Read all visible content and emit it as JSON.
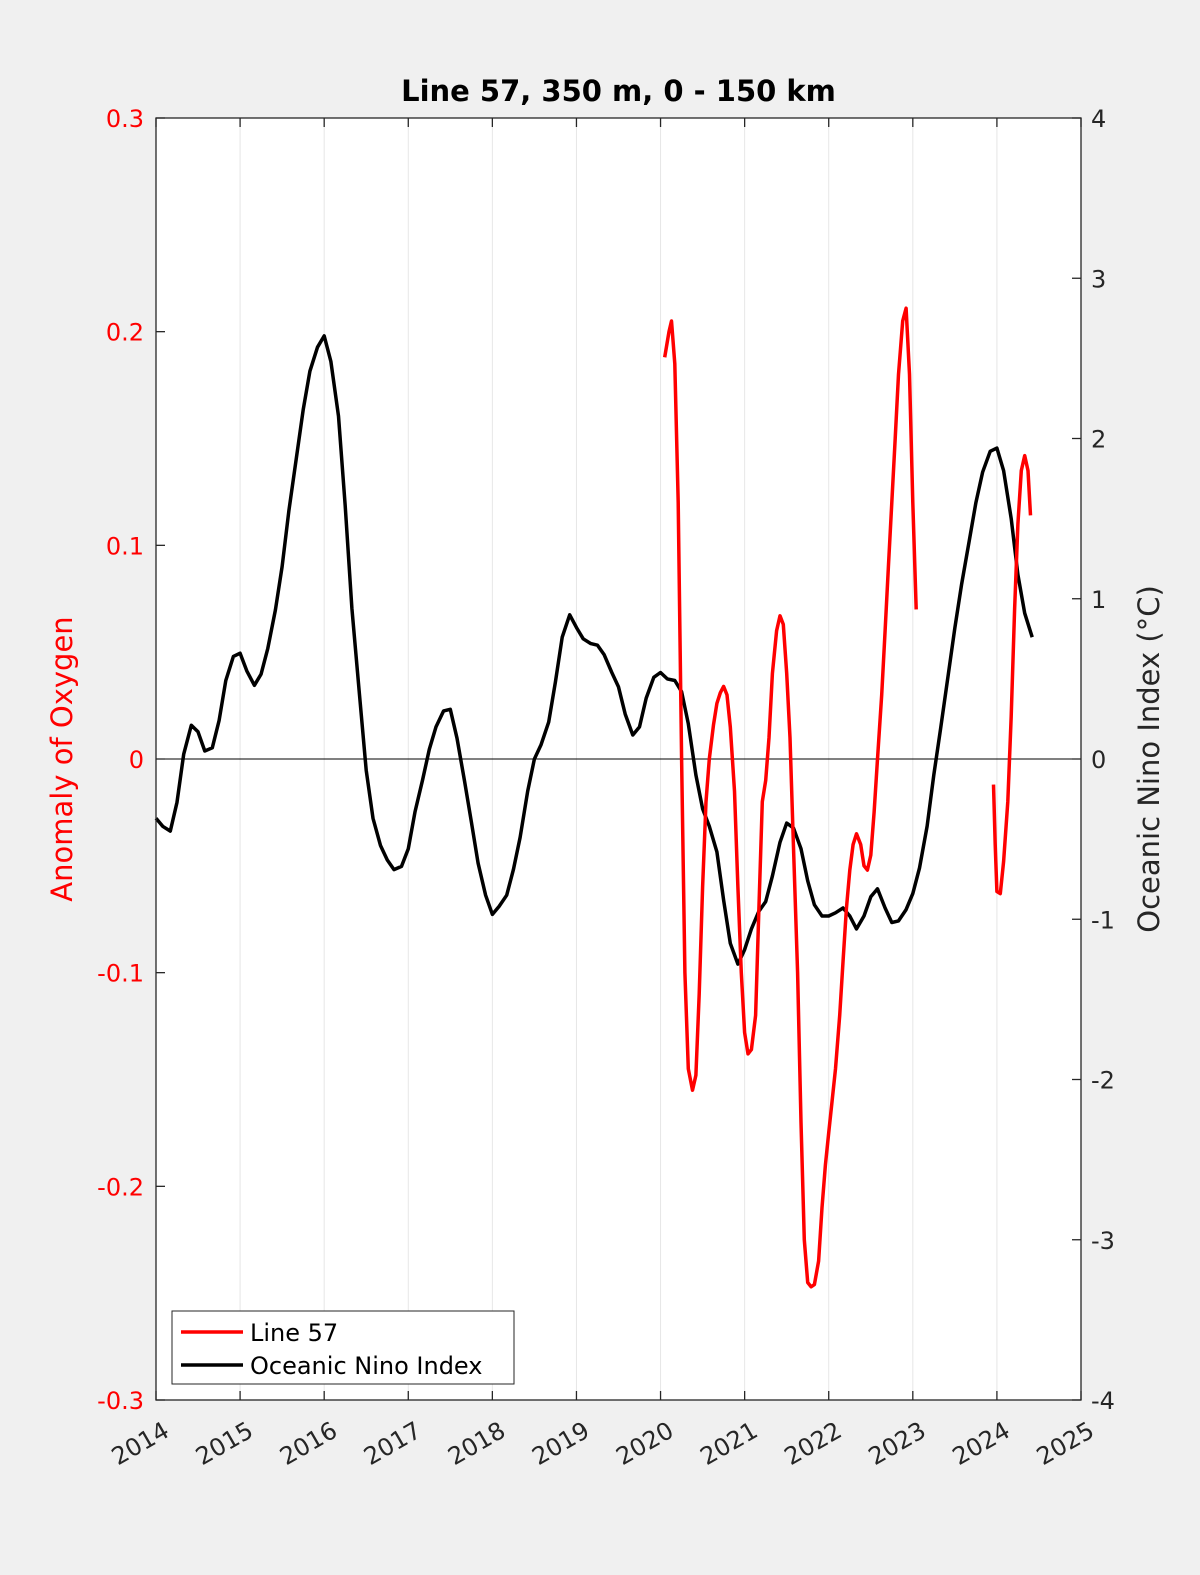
{
  "chart_data": {
    "type": "line",
    "title": "Line 57, 350 m, 0 - 150 km",
    "xlim": [
      2014,
      2025
    ],
    "x_ticks": [
      "2014",
      "2015",
      "2016",
      "2017",
      "2018",
      "2019",
      "2020",
      "2021",
      "2022",
      "2023",
      "2024",
      "2025"
    ],
    "y_left": {
      "label": "Anomaly of Oxygen",
      "lim": [
        -0.3,
        0.3
      ],
      "ticks": [
        "-0.3",
        "-0.2",
        "-0.1",
        "0",
        "0.1",
        "0.2",
        "0.3"
      ],
      "color": "#ff0000"
    },
    "y_right": {
      "label": "Oceanic Nino Index (°C)",
      "lim": [
        -4,
        4
      ],
      "ticks": [
        "-4",
        "-3",
        "-2",
        "-1",
        "0",
        "1",
        "2",
        "3",
        "4"
      ],
      "color": "#000000"
    },
    "grid": "vertical",
    "legend_position": "bottom-left",
    "series": [
      {
        "name": "Line 57",
        "axis": "left",
        "color": "#ff0000",
        "segments": [
          [
            [
              2020.05,
              0.188
            ],
            [
              2020.1,
              0.2
            ],
            [
              2020.13,
              0.205
            ],
            [
              2020.17,
              0.185
            ],
            [
              2020.21,
              0.12
            ],
            [
              2020.25,
              0.0
            ],
            [
              2020.29,
              -0.1
            ],
            [
              2020.33,
              -0.145
            ],
            [
              2020.38,
              -0.155
            ],
            [
              2020.42,
              -0.148
            ],
            [
              2020.46,
              -0.11
            ],
            [
              2020.5,
              -0.06
            ],
            [
              2020.54,
              -0.02
            ],
            [
              2020.58,
              0.0
            ],
            [
              2020.63,
              0.016
            ],
            [
              2020.67,
              0.026
            ],
            [
              2020.71,
              0.031
            ],
            [
              2020.75,
              0.034
            ],
            [
              2020.79,
              0.03
            ],
            [
              2020.83,
              0.015
            ],
            [
              2020.88,
              -0.015
            ],
            [
              2020.92,
              -0.06
            ],
            [
              2020.96,
              -0.1
            ],
            [
              2021.0,
              -0.128
            ],
            [
              2021.04,
              -0.138
            ],
            [
              2021.08,
              -0.136
            ],
            [
              2021.13,
              -0.12
            ],
            [
              2021.17,
              -0.07
            ],
            [
              2021.21,
              -0.02
            ],
            [
              2021.25,
              -0.01
            ],
            [
              2021.29,
              0.01
            ],
            [
              2021.33,
              0.04
            ],
            [
              2021.38,
              0.06
            ],
            [
              2021.42,
              0.067
            ],
            [
              2021.46,
              0.063
            ],
            [
              2021.5,
              0.04
            ],
            [
              2021.54,
              0.01
            ],
            [
              2021.58,
              -0.04
            ],
            [
              2021.63,
              -0.1
            ],
            [
              2021.67,
              -0.17
            ],
            [
              2021.71,
              -0.225
            ],
            [
              2021.75,
              -0.245
            ],
            [
              2021.79,
              -0.247
            ],
            [
              2021.83,
              -0.246
            ],
            [
              2021.88,
              -0.235
            ],
            [
              2021.92,
              -0.21
            ],
            [
              2021.96,
              -0.19
            ],
            [
              2022.0,
              -0.175
            ],
            [
              2022.04,
              -0.16
            ],
            [
              2022.08,
              -0.145
            ],
            [
              2022.13,
              -0.12
            ],
            [
              2022.17,
              -0.095
            ],
            [
              2022.21,
              -0.07
            ],
            [
              2022.25,
              -0.052
            ],
            [
              2022.29,
              -0.04
            ],
            [
              2022.33,
              -0.035
            ],
            [
              2022.38,
              -0.04
            ],
            [
              2022.42,
              -0.05
            ],
            [
              2022.46,
              -0.052
            ],
            [
              2022.5,
              -0.045
            ],
            [
              2022.54,
              -0.025
            ],
            [
              2022.58,
              0.0
            ],
            [
              2022.63,
              0.03
            ],
            [
              2022.67,
              0.06
            ],
            [
              2022.71,
              0.09
            ],
            [
              2022.75,
              0.12
            ],
            [
              2022.79,
              0.15
            ],
            [
              2022.83,
              0.18
            ],
            [
              2022.88,
              0.205
            ],
            [
              2022.92,
              0.211
            ],
            [
              2022.96,
              0.18
            ],
            [
              2023.0,
              0.12
            ],
            [
              2023.04,
              0.07
            ]
          ],
          [
            [
              2023.96,
              -0.012
            ],
            [
              2023.98,
              -0.04
            ],
            [
              2024.0,
              -0.062
            ],
            [
              2024.04,
              -0.063
            ],
            [
              2024.08,
              -0.048
            ],
            [
              2024.13,
              -0.02
            ],
            [
              2024.17,
              0.02
            ],
            [
              2024.21,
              0.07
            ],
            [
              2024.25,
              0.11
            ],
            [
              2024.29,
              0.135
            ],
            [
              2024.33,
              0.142
            ],
            [
              2024.37,
              0.135
            ],
            [
              2024.4,
              0.114
            ]
          ]
        ]
      },
      {
        "name": "Oceanic Nino Index",
        "axis": "right",
        "color": "#000000",
        "points": [
          [
            2014.0,
            -0.37
          ],
          [
            2014.08,
            -0.42
          ],
          [
            2014.17,
            -0.45
          ],
          [
            2014.25,
            -0.27
          ],
          [
            2014.33,
            0.03
          ],
          [
            2014.42,
            0.21
          ],
          [
            2014.5,
            0.17
          ],
          [
            2014.58,
            0.05
          ],
          [
            2014.67,
            0.07
          ],
          [
            2014.75,
            0.24
          ],
          [
            2014.83,
            0.49
          ],
          [
            2014.92,
            0.64
          ],
          [
            2015.0,
            0.66
          ],
          [
            2015.08,
            0.55
          ],
          [
            2015.17,
            0.46
          ],
          [
            2015.25,
            0.53
          ],
          [
            2015.33,
            0.69
          ],
          [
            2015.42,
            0.93
          ],
          [
            2015.5,
            1.2
          ],
          [
            2015.58,
            1.55
          ],
          [
            2015.67,
            1.88
          ],
          [
            2015.75,
            2.18
          ],
          [
            2015.83,
            2.42
          ],
          [
            2015.92,
            2.57
          ],
          [
            2016.0,
            2.64
          ],
          [
            2016.08,
            2.48
          ],
          [
            2016.17,
            2.14
          ],
          [
            2016.25,
            1.58
          ],
          [
            2016.33,
            0.94
          ],
          [
            2016.42,
            0.4
          ],
          [
            2016.5,
            -0.07
          ],
          [
            2016.58,
            -0.37
          ],
          [
            2016.67,
            -0.54
          ],
          [
            2016.75,
            -0.63
          ],
          [
            2016.83,
            -0.69
          ],
          [
            2016.92,
            -0.67
          ],
          [
            2017.0,
            -0.56
          ],
          [
            2017.08,
            -0.33
          ],
          [
            2017.17,
            -0.13
          ],
          [
            2017.25,
            0.06
          ],
          [
            2017.33,
            0.2
          ],
          [
            2017.42,
            0.3
          ],
          [
            2017.5,
            0.31
          ],
          [
            2017.58,
            0.13
          ],
          [
            2017.67,
            -0.14
          ],
          [
            2017.75,
            -0.39
          ],
          [
            2017.83,
            -0.65
          ],
          [
            2017.92,
            -0.85
          ],
          [
            2018.0,
            -0.97
          ],
          [
            2018.08,
            -0.92
          ],
          [
            2018.17,
            -0.85
          ],
          [
            2018.25,
            -0.69
          ],
          [
            2018.33,
            -0.49
          ],
          [
            2018.42,
            -0.2
          ],
          [
            2018.5,
            0.0
          ],
          [
            2018.58,
            0.09
          ],
          [
            2018.67,
            0.23
          ],
          [
            2018.75,
            0.48
          ],
          [
            2018.83,
            0.76
          ],
          [
            2018.92,
            0.9
          ],
          [
            2019.0,
            0.82
          ],
          [
            2019.08,
            0.75
          ],
          [
            2019.17,
            0.72
          ],
          [
            2019.25,
            0.71
          ],
          [
            2019.33,
            0.65
          ],
          [
            2019.42,
            0.54
          ],
          [
            2019.5,
            0.45
          ],
          [
            2019.58,
            0.28
          ],
          [
            2019.67,
            0.15
          ],
          [
            2019.75,
            0.2
          ],
          [
            2019.83,
            0.38
          ],
          [
            2019.92,
            0.51
          ],
          [
            2020.0,
            0.54
          ],
          [
            2020.08,
            0.5
          ],
          [
            2020.17,
            0.49
          ],
          [
            2020.25,
            0.42
          ],
          [
            2020.33,
            0.22
          ],
          [
            2020.42,
            -0.1
          ],
          [
            2020.5,
            -0.31
          ],
          [
            2020.58,
            -0.42
          ],
          [
            2020.67,
            -0.58
          ],
          [
            2020.75,
            -0.88
          ],
          [
            2020.83,
            -1.15
          ],
          [
            2020.92,
            -1.28
          ],
          [
            2021.0,
            -1.19
          ],
          [
            2021.08,
            -1.06
          ],
          [
            2021.17,
            -0.95
          ],
          [
            2021.25,
            -0.89
          ],
          [
            2021.33,
            -0.73
          ],
          [
            2021.42,
            -0.52
          ],
          [
            2021.5,
            -0.4
          ],
          [
            2021.58,
            -0.43
          ],
          [
            2021.67,
            -0.56
          ],
          [
            2021.75,
            -0.76
          ],
          [
            2021.83,
            -0.91
          ],
          [
            2021.92,
            -0.98
          ],
          [
            2022.0,
            -0.98
          ],
          [
            2022.08,
            -0.96
          ],
          [
            2022.17,
            -0.93
          ],
          [
            2022.25,
            -0.98
          ],
          [
            2022.33,
            -1.06
          ],
          [
            2022.42,
            -0.98
          ],
          [
            2022.5,
            -0.86
          ],
          [
            2022.58,
            -0.81
          ],
          [
            2022.67,
            -0.93
          ],
          [
            2022.75,
            -1.02
          ],
          [
            2022.83,
            -1.01
          ],
          [
            2022.92,
            -0.94
          ],
          [
            2023.0,
            -0.84
          ],
          [
            2023.08,
            -0.68
          ],
          [
            2023.17,
            -0.42
          ],
          [
            2023.25,
            -0.1
          ],
          [
            2023.33,
            0.19
          ],
          [
            2023.42,
            0.52
          ],
          [
            2023.5,
            0.82
          ],
          [
            2023.58,
            1.09
          ],
          [
            2023.67,
            1.36
          ],
          [
            2023.75,
            1.6
          ],
          [
            2023.83,
            1.79
          ],
          [
            2023.92,
            1.92
          ],
          [
            2024.0,
            1.94
          ],
          [
            2024.08,
            1.8
          ],
          [
            2024.17,
            1.5
          ],
          [
            2024.25,
            1.15
          ],
          [
            2024.33,
            0.91
          ],
          [
            2024.42,
            0.76
          ]
        ]
      }
    ]
  }
}
